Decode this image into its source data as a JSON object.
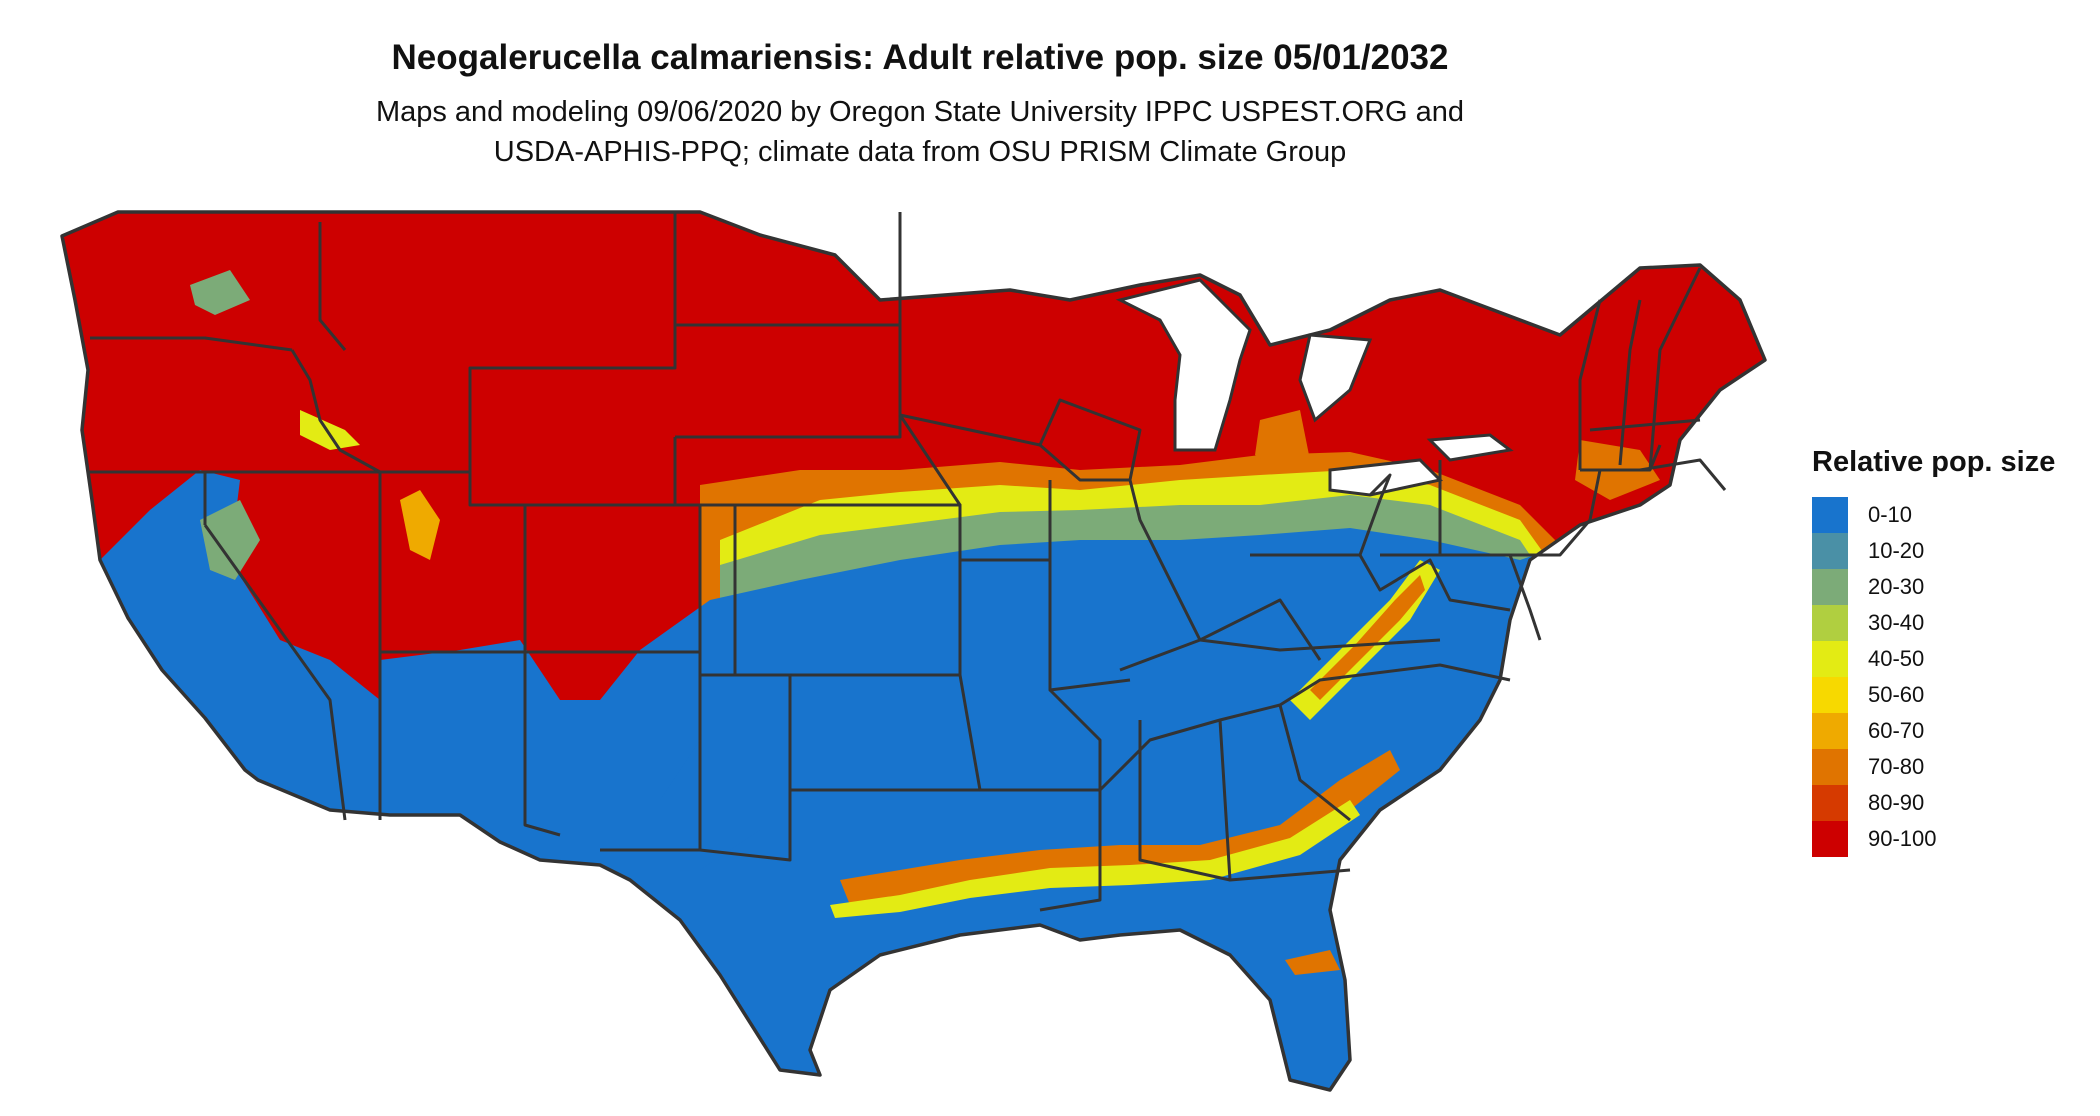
{
  "title": "Neogalerucella calmariensis: Adult relative pop. size 05/01/2032",
  "subtitle": {
    "line1": "Maps and modeling 09/06/2020 by Oregon State University IPPC USPEST.ORG and",
    "line2": "USDA-APHIS-PPQ; climate data from OSU PRISM Climate Group"
  },
  "legend": {
    "title": "Relative pop. size",
    "items": [
      {
        "label": "0-10",
        "color": "#1874cd"
      },
      {
        "label": "10-20",
        "color": "#4a90a6"
      },
      {
        "label": "20-30",
        "color": "#7cab78"
      },
      {
        "label": "30-40",
        "color": "#b0cf40"
      },
      {
        "label": "40-50",
        "color": "#e3eb14"
      },
      {
        "label": "50-60",
        "color": "#f7d900"
      },
      {
        "label": "60-70",
        "color": "#efaa00"
      },
      {
        "label": "70-80",
        "color": "#e07400"
      },
      {
        "label": "80-90",
        "color": "#d63a00"
      },
      {
        "label": "90-100",
        "color": "#cd0000"
      }
    ]
  }
}
